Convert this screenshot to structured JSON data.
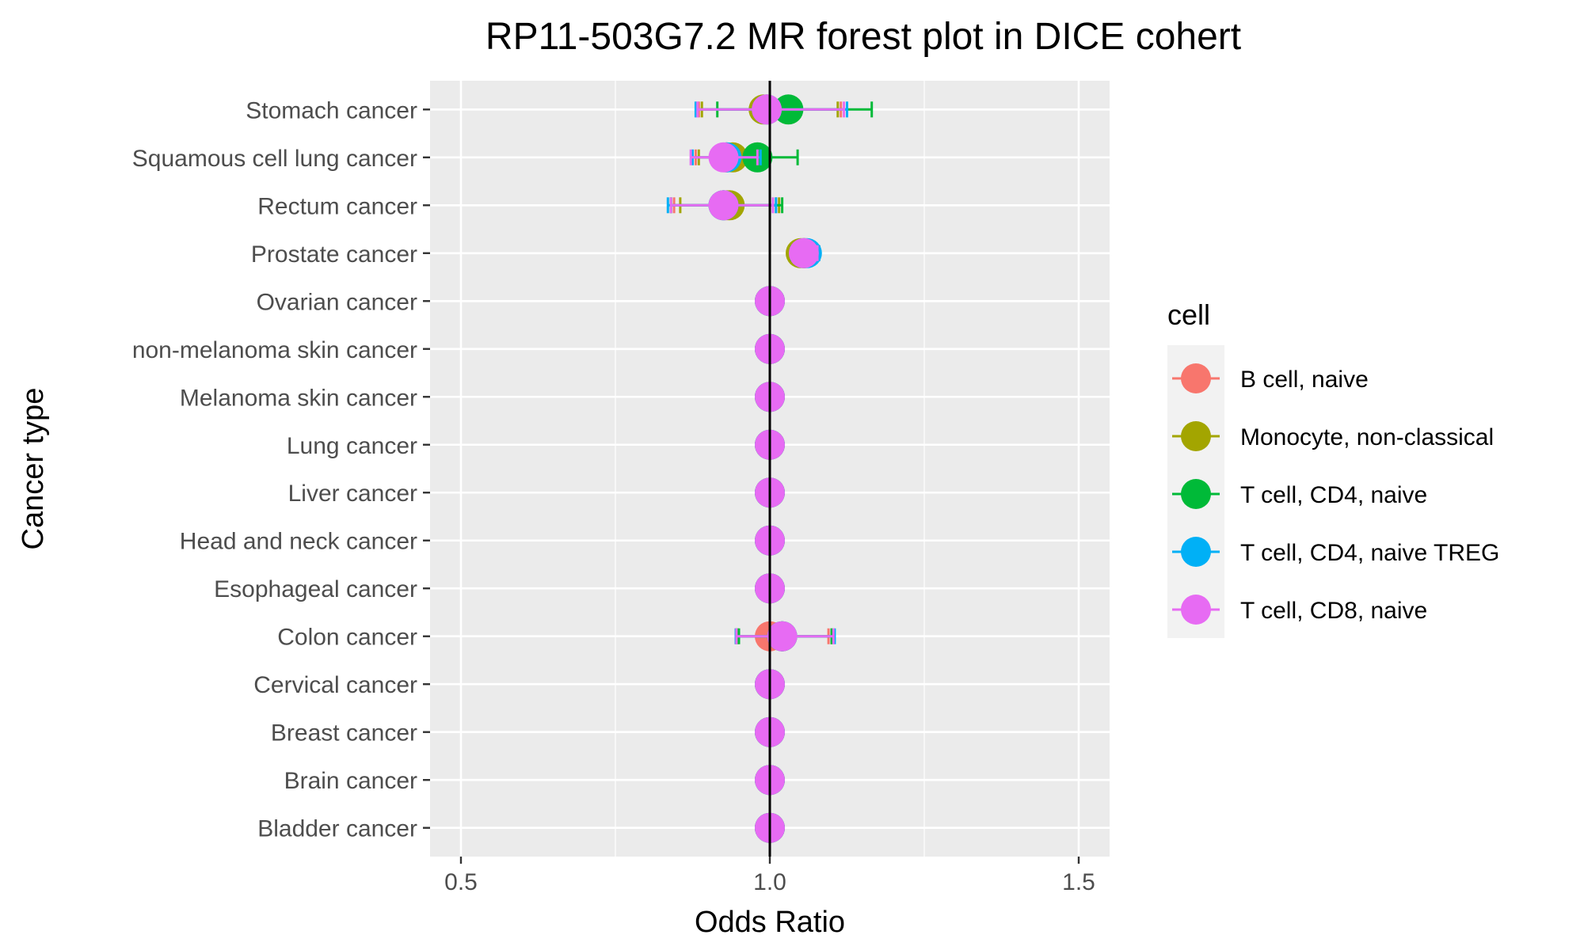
{
  "chart_data": {
    "type": "forest",
    "title": "RP11-503G7.2 MR forest plot in DICE cohert",
    "xlabel": "Odds Ratio",
    "ylabel": "Cancer type",
    "xlim": [
      0.45,
      1.55
    ],
    "xticks": [
      0.5,
      1.0,
      1.5
    ],
    "xtick_labels": [
      "0.5",
      "1.0",
      "1.5"
    ],
    "x_minor_gridlines": [
      0.75,
      1.25
    ],
    "reference_line": 1.0,
    "grid": true,
    "legend_position": "right",
    "legend_title": "cell",
    "categories": [
      "Stomach cancer",
      "Squamous cell lung cancer",
      "Rectum cancer",
      "Prostate cancer",
      "Ovarian cancer",
      "non-melanoma skin cancer",
      "Melanoma skin cancer",
      "Lung cancer",
      "Liver cancer",
      "Head and neck cancer",
      "Esophageal cancer",
      "Colon cancer",
      "Cervical cancer",
      "Breast cancer",
      "Brain cancer",
      "Bladder cancer"
    ],
    "series": [
      {
        "name": "B cell, naive",
        "color": "#F8766D",
        "or": [
          0.995,
          0.93,
          0.93,
          1.055,
          1.0,
          1.0,
          1.0,
          1.0,
          1.0,
          1.0,
          1.0,
          1.0,
          1.0,
          1.0,
          1.0,
          1.0
        ],
        "lower": [
          0.885,
          0.88,
          0.845,
          1.04,
          1.0,
          1.0,
          1.0,
          1.0,
          1.0,
          1.0,
          1.0,
          0.945,
          1.0,
          1.0,
          1.0,
          1.0
        ],
        "upper": [
          1.115,
          0.98,
          1.01,
          1.075,
          1.0,
          1.0,
          1.0,
          1.0,
          1.0,
          1.0,
          1.0,
          1.095,
          1.0,
          1.0,
          1.0,
          1.0
        ]
      },
      {
        "name": "Monocyte, non-classical",
        "color": "#A3A500",
        "or": [
          0.99,
          0.94,
          0.935,
          1.05,
          1.0,
          1.0,
          1.0,
          1.0,
          1.0,
          1.0,
          1.0,
          1.02,
          1.0,
          1.0,
          1.0,
          1.0
        ],
        "lower": [
          0.89,
          0.885,
          0.855,
          1.035,
          1.0,
          1.0,
          1.0,
          1.0,
          1.0,
          1.0,
          1.0,
          0.948,
          1.0,
          1.0,
          1.0,
          1.0
        ],
        "upper": [
          1.11,
          0.995,
          1.015,
          1.07,
          1.0,
          1.0,
          1.0,
          1.0,
          1.0,
          1.0,
          1.0,
          1.1,
          1.0,
          1.0,
          1.0,
          1.0
        ]
      },
      {
        "name": "T cell, CD4, naive",
        "color": "#00BA38",
        "or": [
          1.03,
          0.98,
          0.925,
          1.055,
          1.0,
          1.0,
          1.0,
          1.0,
          1.0,
          1.0,
          1.0,
          1.02,
          1.0,
          1.0,
          1.0,
          1.0
        ],
        "lower": [
          0.915,
          0.925,
          0.84,
          1.035,
          1.0,
          1.0,
          1.0,
          1.0,
          1.0,
          1.0,
          1.0,
          0.95,
          1.0,
          1.0,
          1.0,
          1.0
        ],
        "upper": [
          1.165,
          1.045,
          1.02,
          1.075,
          1.0,
          1.0,
          1.0,
          1.0,
          1.0,
          1.0,
          1.0,
          1.1,
          1.0,
          1.0,
          1.0,
          1.0
        ]
      },
      {
        "name": "T cell, CD4, naive TREG",
        "color": "#00B0F6",
        "or": [
          0.995,
          0.93,
          0.925,
          1.06,
          1.0,
          1.0,
          1.0,
          1.0,
          1.0,
          1.0,
          1.0,
          1.02,
          1.0,
          1.0,
          1.0,
          1.0
        ],
        "lower": [
          0.88,
          0.875,
          0.835,
          1.04,
          1.0,
          1.0,
          1.0,
          1.0,
          1.0,
          1.0,
          1.0,
          0.945,
          1.0,
          1.0,
          1.0,
          1.0
        ],
        "upper": [
          1.125,
          0.985,
          1.01,
          1.08,
          1.0,
          1.0,
          1.0,
          1.0,
          1.0,
          1.0,
          1.0,
          1.105,
          1.0,
          1.0,
          1.0,
          1.0
        ]
      },
      {
        "name": "T cell, CD8, naive",
        "color": "#E76BF3",
        "or": [
          0.995,
          0.925,
          0.925,
          1.055,
          1.0,
          1.0,
          1.0,
          1.0,
          1.0,
          1.0,
          1.0,
          1.02,
          1.0,
          1.0,
          1.0,
          1.0
        ],
        "lower": [
          0.883,
          0.872,
          0.84,
          1.038,
          1.0,
          1.0,
          1.0,
          1.0,
          1.0,
          1.0,
          1.0,
          0.946,
          1.0,
          1.0,
          1.0,
          1.0
        ],
        "upper": [
          1.12,
          0.98,
          1.005,
          1.077,
          1.0,
          1.0,
          1.0,
          1.0,
          1.0,
          1.0,
          1.0,
          1.103,
          1.0,
          1.0,
          1.0,
          1.0
        ]
      }
    ]
  }
}
